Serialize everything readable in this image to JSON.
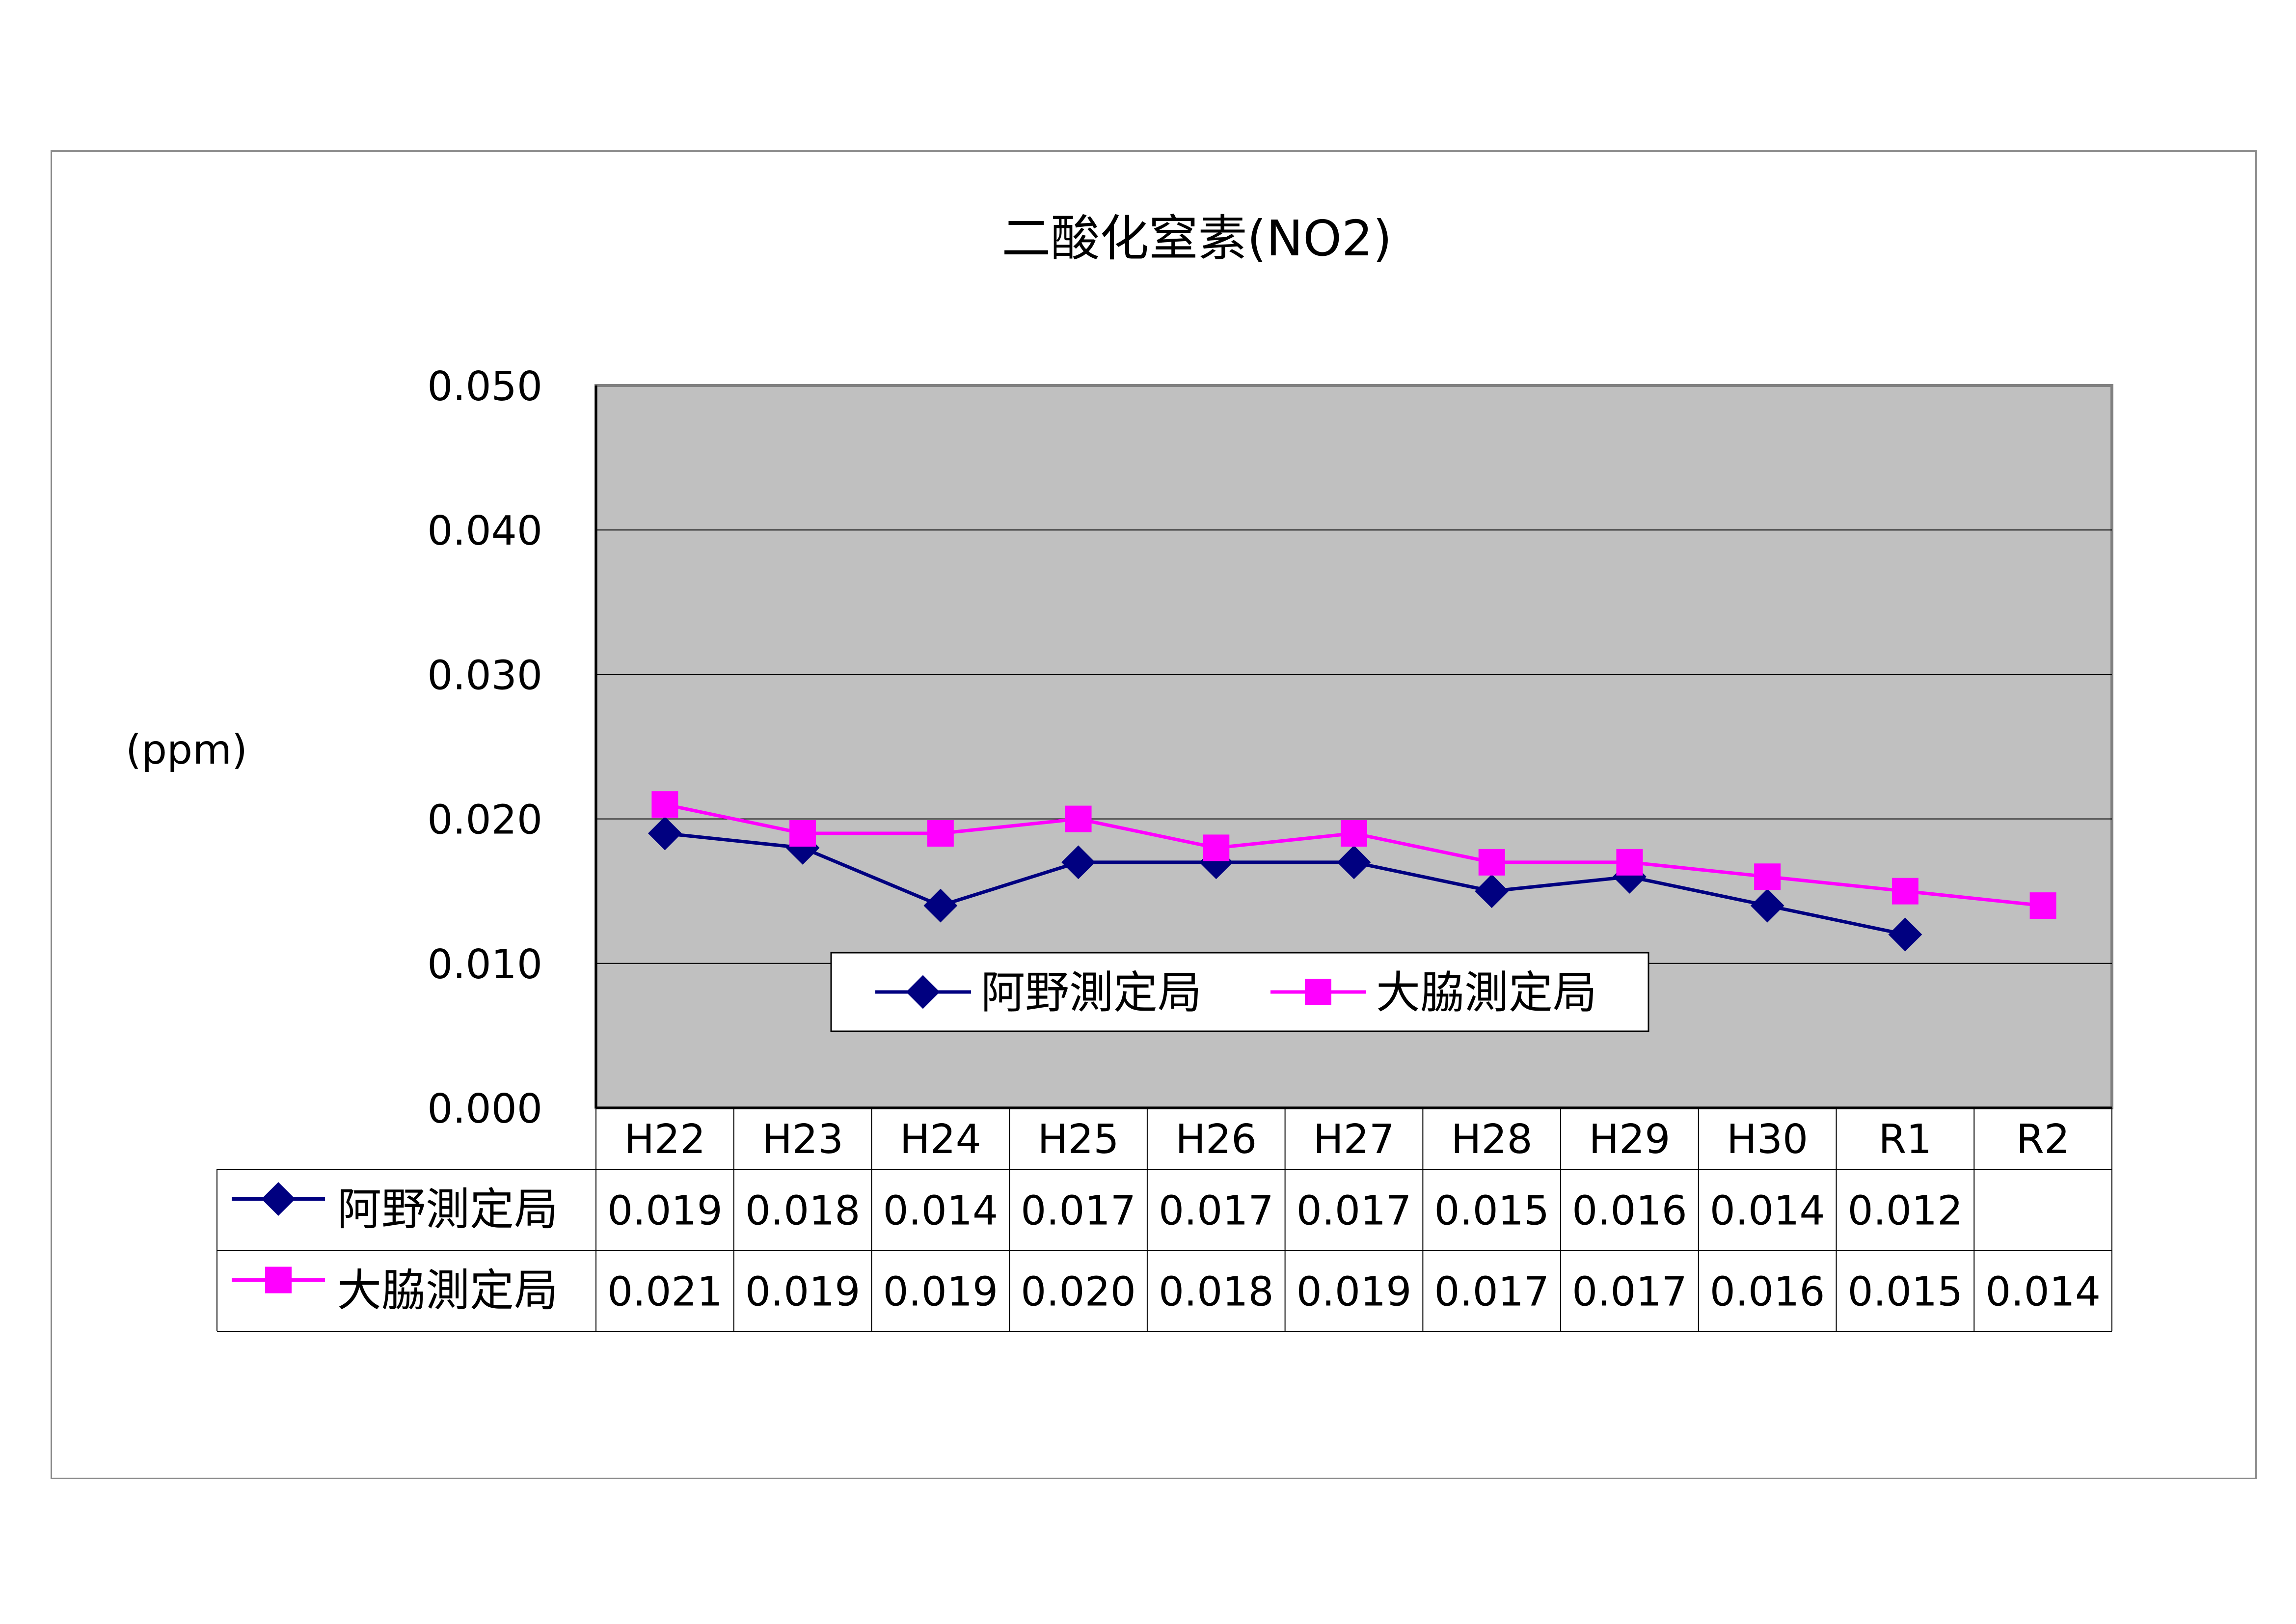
{
  "chart_data": {
    "type": "line",
    "title": "二酸化窒素(NO2)",
    "ylabel": "(ppm)",
    "xlabel": "",
    "categories": [
      "H22",
      "H23",
      "H24",
      "H25",
      "H26",
      "H27",
      "H28",
      "H29",
      "H30",
      "R1",
      "R2"
    ],
    "ylim": [
      0,
      0.05
    ],
    "yticks": [
      "0.000",
      "0.010",
      "0.020",
      "0.030",
      "0.040",
      "0.050"
    ],
    "grid": true,
    "legend_position": "bottom-center",
    "data_table": true,
    "series": [
      {
        "name": "阿野測定局",
        "color": "#000080",
        "marker": "diamond",
        "values": [
          0.019,
          0.018,
          0.014,
          0.017,
          0.017,
          0.017,
          0.015,
          0.016,
          0.014,
          0.012,
          null
        ],
        "labels": [
          "0.019",
          "0.018",
          "0.014",
          "0.017",
          "0.017",
          "0.017",
          "0.015",
          "0.016",
          "0.014",
          "0.012",
          ""
        ]
      },
      {
        "name": "大脇測定局",
        "color": "#ff00ff",
        "marker": "square",
        "values": [
          0.021,
          0.019,
          0.019,
          0.02,
          0.018,
          0.019,
          0.017,
          0.017,
          0.016,
          0.015,
          0.014
        ],
        "labels": [
          "0.021",
          "0.019",
          "0.019",
          "0.020",
          "0.018",
          "0.019",
          "0.017",
          "0.017",
          "0.016",
          "0.015",
          "0.014"
        ]
      }
    ],
    "plot_background": "#c0c0c0"
  }
}
